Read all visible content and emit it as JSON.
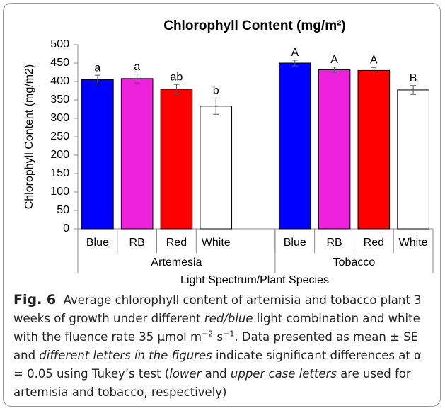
{
  "chart_data": {
    "type": "bar",
    "title": "Chlorophyll Content (mg/m²)",
    "y_label": "Chlorophyll Content (mg/m2)",
    "x_label": "Light Spectrum/Plant Species",
    "ylim": [
      0,
      500
    ],
    "yticks": [
      0,
      50,
      100,
      150,
      200,
      250,
      300,
      350,
      400,
      450,
      500
    ],
    "grid": false,
    "colors": [
      "#0000ff",
      "#ee22dd",
      "#ff0000",
      "#ffffff"
    ],
    "groups": [
      {
        "name": "Artemesia",
        "categories": [
          "Blue",
          "RB",
          "Red",
          "White"
        ],
        "values": [
          405,
          408,
          379,
          333
        ],
        "errors": [
          12,
          12,
          13,
          22
        ],
        "annotations": [
          "a",
          "a",
          "ab",
          "b"
        ]
      },
      {
        "name": "Tobacco",
        "categories": [
          "Blue",
          "RB",
          "Red",
          "White"
        ],
        "values": [
          450,
          432,
          430,
          377
        ],
        "errors": [
          8,
          7,
          8,
          12
        ],
        "annotations": [
          "A",
          "A",
          "A",
          "B"
        ]
      }
    ]
  },
  "caption": {
    "label": "Fig. 6",
    "runs": [
      {
        "text": "Average chlorophyll content of artemisia and tobacco plant 3 weeks of growth under different "
      },
      {
        "text": "red/blue",
        "italic": true
      },
      {
        "text": " light combination and white with the fluence rate 35 μmol m"
      },
      {
        "text": "−2",
        "sup": true
      },
      {
        "text": " s"
      },
      {
        "text": "−1",
        "sup": true
      },
      {
        "text": ". Data presented as mean ± SE and "
      },
      {
        "text": "different letters in the figures",
        "italic": true
      },
      {
        "text": " indicate significant differences at α = 0.05 using Tukey’s test ("
      },
      {
        "text": "lower",
        "italic": true
      },
      {
        "text": " and "
      },
      {
        "text": "upper case letters",
        "italic": true
      },
      {
        "text": " are used for artemisia and tobacco, respectively)"
      }
    ]
  }
}
